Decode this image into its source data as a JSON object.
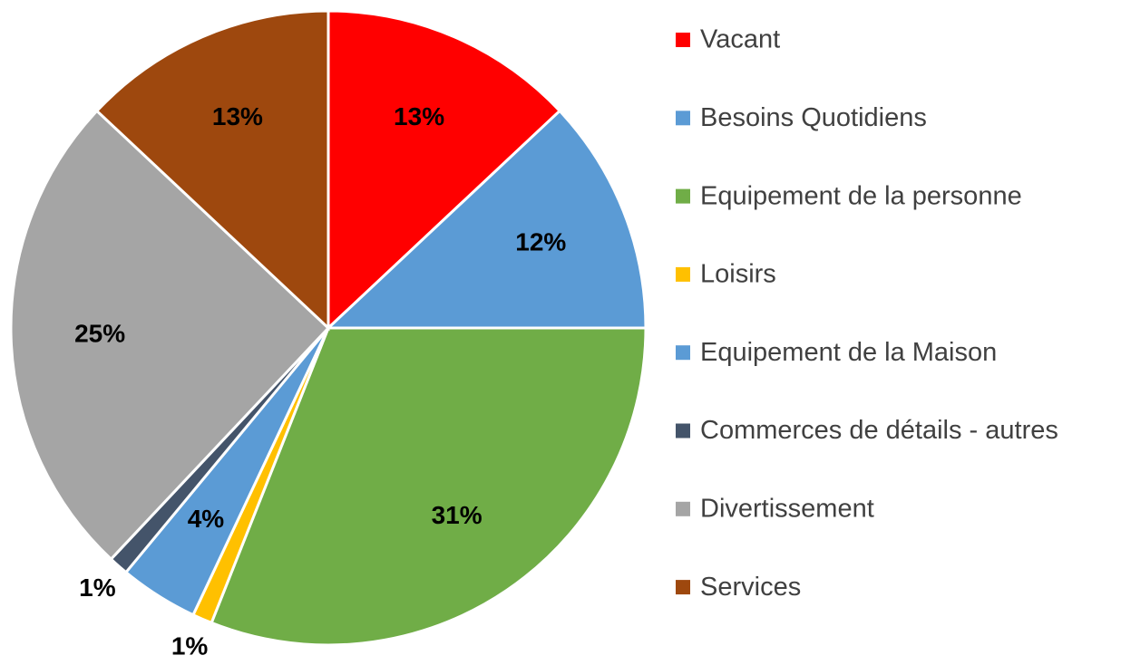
{
  "chart_data": {
    "type": "pie",
    "categories": [
      "Vacant",
      "Besoins Quotidiens",
      "Equipement de la personne",
      "Loisirs",
      "Equipement de la Maison",
      "Commerces de détails - autres",
      "Divertissement",
      "Services"
    ],
    "values": [
      13,
      12,
      31,
      1,
      4,
      1,
      25,
      13
    ],
    "value_labels": [
      "13%",
      "12%",
      "31%",
      "1%",
      "4%",
      "1%",
      "25%",
      "13%"
    ],
    "colors": [
      "#ff0000",
      "#5b9bd5",
      "#70ad47",
      "#ffc000",
      "#5b9bd5",
      "#44546a",
      "#a5a5a5",
      "#9e480e"
    ],
    "legend": "right"
  }
}
